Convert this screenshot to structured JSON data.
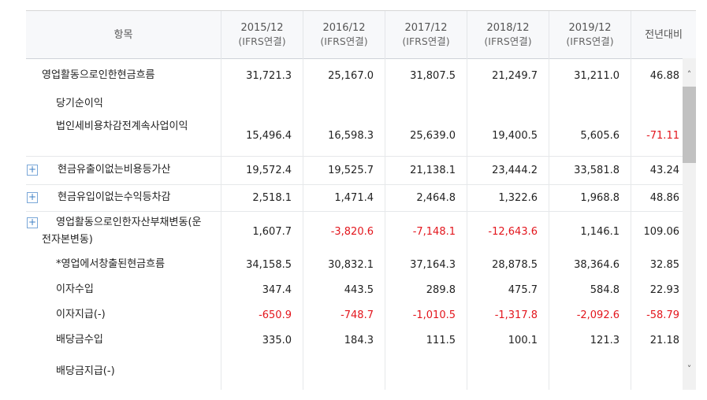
{
  "header": {
    "label_col": "항목",
    "periods": [
      {
        "year": "2015/12",
        "basis": "(IFRS연결)"
      },
      {
        "year": "2016/12",
        "basis": "(IFRS연결)"
      },
      {
        "year": "2017/12",
        "basis": "(IFRS연결)"
      },
      {
        "year": "2018/12",
        "basis": "(IFRS연결)"
      },
      {
        "year": "2019/12",
        "basis": "(IFRS연결)"
      }
    ],
    "yoy_col": "전년대비"
  },
  "rows": [
    {
      "label": "영업활동으로인한현금흐름",
      "values": [
        "31,721.3",
        "25,167.0",
        "31,807.5",
        "21,249.7",
        "31,211.0"
      ],
      "yoy": "46.88"
    },
    {
      "label": "당기순이익",
      "values": [
        "",
        "",
        "",
        "",
        ""
      ],
      "yoy": ""
    },
    {
      "label": "법인세비용차감전계속사업이익",
      "values": [
        "15,496.4",
        "16,598.3",
        "25,639.0",
        "19,400.5",
        "5,605.6"
      ],
      "yoy": "-71.11"
    },
    {
      "label": "현금유출이없는비용등가산",
      "values": [
        "19,572.4",
        "19,525.7",
        "21,138.1",
        "23,444.2",
        "33,581.8"
      ],
      "yoy": "43.24",
      "expand": "+"
    },
    {
      "label": "현금유입이없는수익등차감",
      "values": [
        "2,518.1",
        "1,471.4",
        "2,464.8",
        "1,322.6",
        "1,968.8"
      ],
      "yoy": "48.86",
      "expand": "+"
    },
    {
      "label": "영업활동으로인한자산부채변동(운전자본변동)",
      "values": [
        "1,607.7",
        "-3,820.6",
        "-7,148.1",
        "-12,643.6",
        "1,146.1"
      ],
      "yoy": "109.06",
      "expand": "+"
    },
    {
      "label": "*영업에서창출된현금흐름",
      "values": [
        "34,158.5",
        "30,832.1",
        "37,164.3",
        "28,878.5",
        "38,364.6"
      ],
      "yoy": "32.85"
    },
    {
      "label": "이자수입",
      "values": [
        "347.4",
        "443.5",
        "289.8",
        "475.7",
        "584.8"
      ],
      "yoy": "22.93"
    },
    {
      "label": "이자지급(-)",
      "values": [
        "-650.9",
        "-748.7",
        "-1,010.5",
        "-1,317.8",
        "-2,092.6"
      ],
      "yoy": "-58.79"
    },
    {
      "label": "배당금수입",
      "values": [
        "335.0",
        "184.3",
        "111.5",
        "100.1",
        "121.3"
      ],
      "yoy": "21.18"
    },
    {
      "label": "배당금지급(-)",
      "values": [
        "",
        "",
        "",
        "",
        ""
      ],
      "yoy": ""
    }
  ],
  "scrollbar": {
    "up_icon": "chevron-up-icon",
    "down_icon": "chevron-down-icon"
  },
  "colors": {
    "negative": "#e3161d",
    "header_bg": "#f7f8fa",
    "expand_border": "#7aa7d8"
  }
}
